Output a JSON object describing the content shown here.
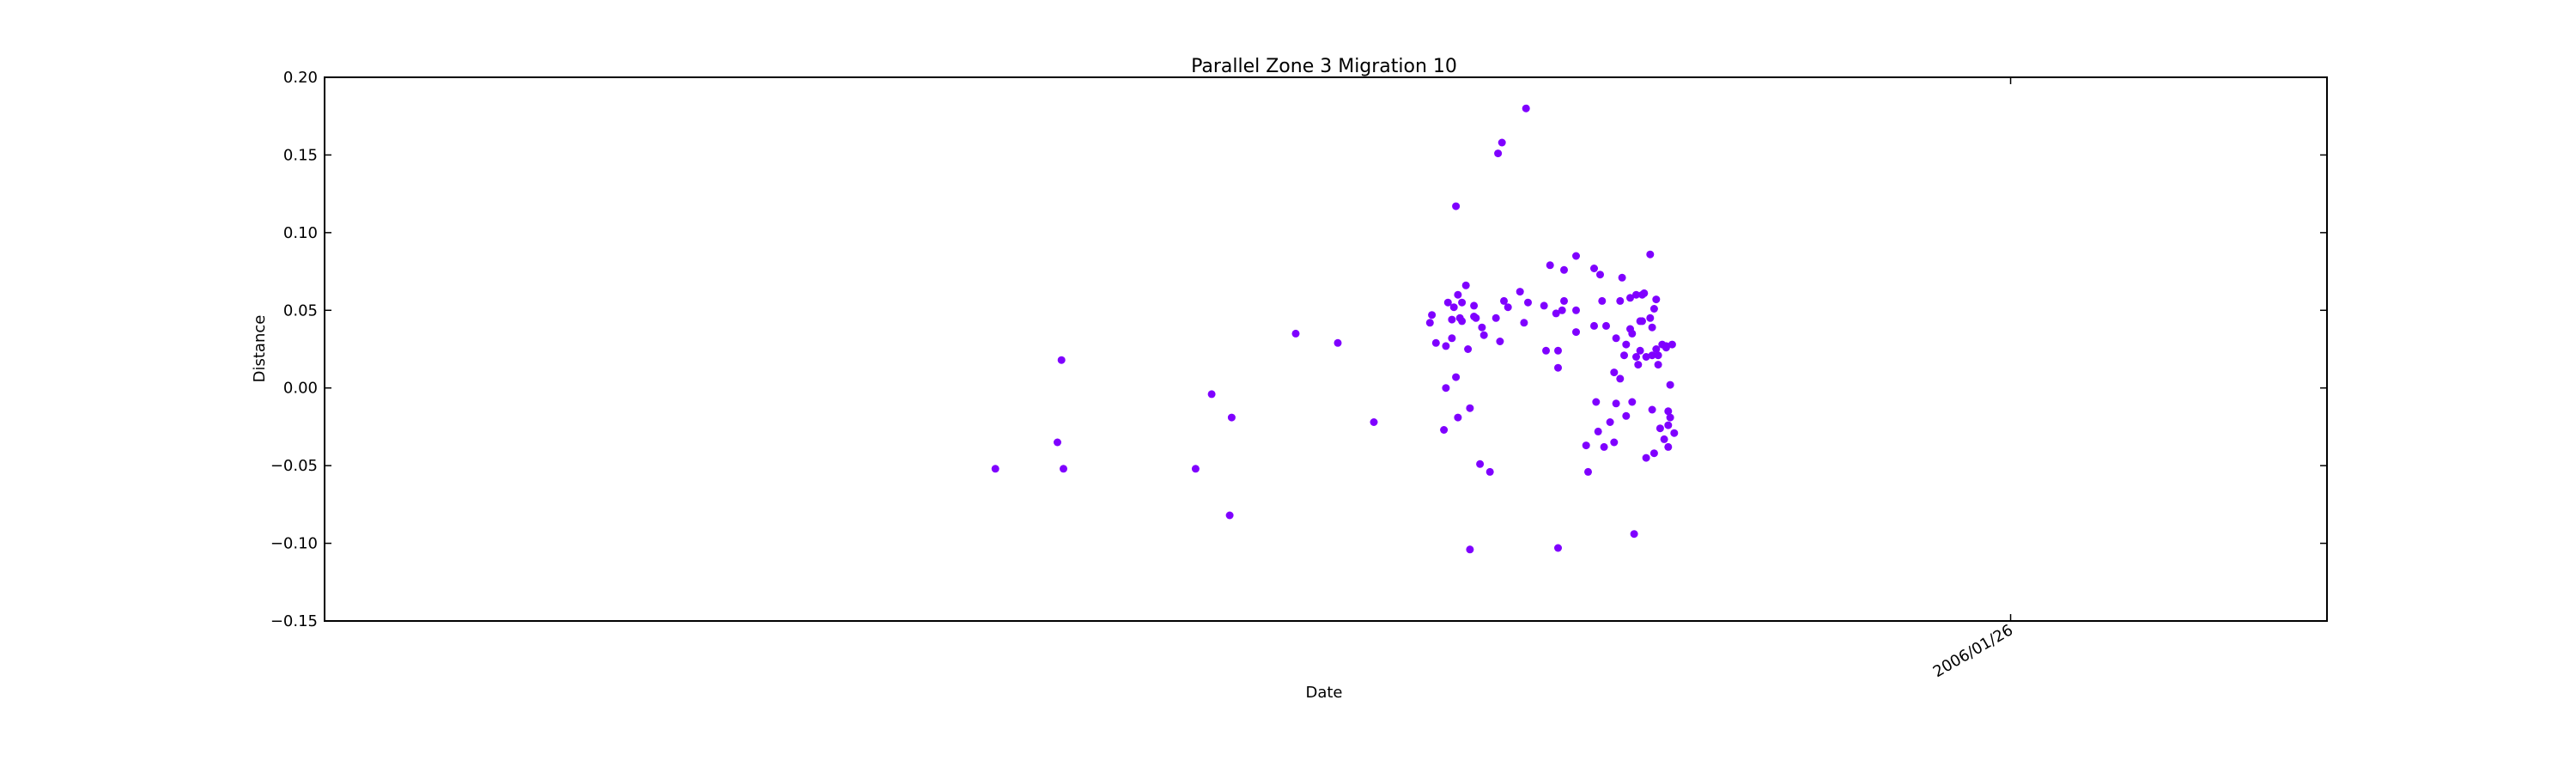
{
  "chart_data": {
    "type": "scatter",
    "title": "Parallel Zone 3 Migration 10",
    "xlabel": "Date",
    "ylabel": "Distance",
    "ylim": [
      -0.15,
      0.2
    ],
    "yticks": [
      0.2,
      0.15,
      0.1,
      0.05,
      0.0,
      -0.05,
      -0.1,
      -0.15
    ],
    "ytick_labels": [
      "0.20",
      "0.15",
      "0.10",
      "0.05",
      "0.00",
      "−0.05",
      "−0.10",
      "−0.15"
    ],
    "xlim": [
      0,
      100
    ],
    "xticks": [
      {
        "x": 84.2,
        "label": "2006/01/26"
      }
    ],
    "grid": false,
    "marker_color": "#7F00FF",
    "series": [
      {
        "name": "Distance",
        "points": [
          [
            33.5,
            -0.052
          ],
          [
            36.6,
            -0.035
          ],
          [
            36.8,
            0.018
          ],
          [
            36.9,
            -0.052
          ],
          [
            43.5,
            -0.052
          ],
          [
            44.3,
            -0.004
          ],
          [
            45.2,
            -0.082
          ],
          [
            45.3,
            -0.019
          ],
          [
            48.5,
            0.035
          ],
          [
            50.6,
            0.029
          ],
          [
            52.4,
            -0.022
          ],
          [
            55.2,
            0.042
          ],
          [
            55.3,
            0.047
          ],
          [
            55.5,
            0.029
          ],
          [
            55.9,
            -0.027
          ],
          [
            56.0,
            0.0
          ],
          [
            56.0,
            0.027
          ],
          [
            56.1,
            0.055
          ],
          [
            56.3,
            0.044
          ],
          [
            56.3,
            0.032
          ],
          [
            56.4,
            0.052
          ],
          [
            56.5,
            0.007
          ],
          [
            56.5,
            0.117
          ],
          [
            56.6,
            -0.019
          ],
          [
            56.6,
            0.06
          ],
          [
            56.7,
            0.045
          ],
          [
            56.8,
            0.043
          ],
          [
            56.8,
            0.055
          ],
          [
            57.0,
            0.066
          ],
          [
            57.1,
            0.025
          ],
          [
            57.2,
            -0.104
          ],
          [
            57.2,
            -0.013
          ],
          [
            57.4,
            0.053
          ],
          [
            57.4,
            0.046
          ],
          [
            57.5,
            0.045
          ],
          [
            57.7,
            -0.049
          ],
          [
            57.8,
            0.039
          ],
          [
            57.9,
            0.034
          ],
          [
            58.2,
            -0.054
          ],
          [
            58.5,
            0.045
          ],
          [
            58.6,
            0.151
          ],
          [
            58.7,
            0.03
          ],
          [
            58.8,
            0.158
          ],
          [
            58.9,
            0.056
          ],
          [
            59.1,
            0.052
          ],
          [
            59.7,
            0.062
          ],
          [
            59.9,
            0.042
          ],
          [
            60.0,
            0.18
          ],
          [
            60.1,
            0.055
          ],
          [
            60.9,
            0.053
          ],
          [
            61.0,
            0.024
          ],
          [
            61.2,
            0.079
          ],
          [
            61.5,
            0.048
          ],
          [
            61.6,
            0.013
          ],
          [
            61.6,
            0.024
          ],
          [
            61.6,
            -0.103
          ],
          [
            61.8,
            0.05
          ],
          [
            61.9,
            0.056
          ],
          [
            61.9,
            0.076
          ],
          [
            62.5,
            0.05
          ],
          [
            62.5,
            0.036
          ],
          [
            62.5,
            0.085
          ],
          [
            63.0,
            -0.037
          ],
          [
            63.1,
            -0.054
          ],
          [
            63.4,
            0.077
          ],
          [
            63.4,
            0.04
          ],
          [
            63.5,
            -0.009
          ],
          [
            63.6,
            -0.028
          ],
          [
            63.7,
            0.073
          ],
          [
            63.8,
            0.056
          ],
          [
            63.9,
            -0.038
          ],
          [
            64.0,
            0.04
          ],
          [
            64.2,
            -0.022
          ],
          [
            64.4,
            0.01
          ],
          [
            64.4,
            -0.035
          ],
          [
            64.5,
            0.032
          ],
          [
            64.5,
            -0.01
          ],
          [
            64.7,
            0.006
          ],
          [
            64.7,
            0.056
          ],
          [
            64.8,
            0.071
          ],
          [
            64.9,
            0.021
          ],
          [
            65.0,
            0.028
          ],
          [
            65.0,
            -0.018
          ],
          [
            65.2,
            0.038
          ],
          [
            65.2,
            0.058
          ],
          [
            65.3,
            0.035
          ],
          [
            65.3,
            -0.009
          ],
          [
            65.4,
            -0.094
          ],
          [
            65.5,
            0.02
          ],
          [
            65.5,
            0.06
          ],
          [
            65.6,
            0.015
          ],
          [
            65.7,
            0.043
          ],
          [
            65.7,
            0.024
          ],
          [
            65.8,
            0.06
          ],
          [
            65.8,
            0.043
          ],
          [
            65.9,
            0.061
          ],
          [
            66.0,
            0.02
          ],
          [
            66.0,
            -0.045
          ],
          [
            66.2,
            0.086
          ],
          [
            66.2,
            0.045
          ],
          [
            66.3,
            0.021
          ],
          [
            66.3,
            -0.014
          ],
          [
            66.3,
            0.039
          ],
          [
            66.4,
            -0.042
          ],
          [
            66.4,
            0.051
          ],
          [
            66.5,
            0.025
          ],
          [
            66.5,
            0.057
          ],
          [
            66.6,
            0.015
          ],
          [
            66.6,
            0.021
          ],
          [
            66.7,
            -0.026
          ],
          [
            66.8,
            0.028
          ],
          [
            66.9,
            -0.033
          ],
          [
            67.0,
            0.026
          ],
          [
            67.0,
            0.027
          ],
          [
            67.1,
            -0.038
          ],
          [
            67.1,
            -0.024
          ],
          [
            67.1,
            -0.015
          ],
          [
            67.2,
            -0.019
          ],
          [
            67.2,
            0.002
          ],
          [
            67.3,
            0.028
          ],
          [
            67.4,
            -0.029
          ]
        ]
      }
    ]
  }
}
